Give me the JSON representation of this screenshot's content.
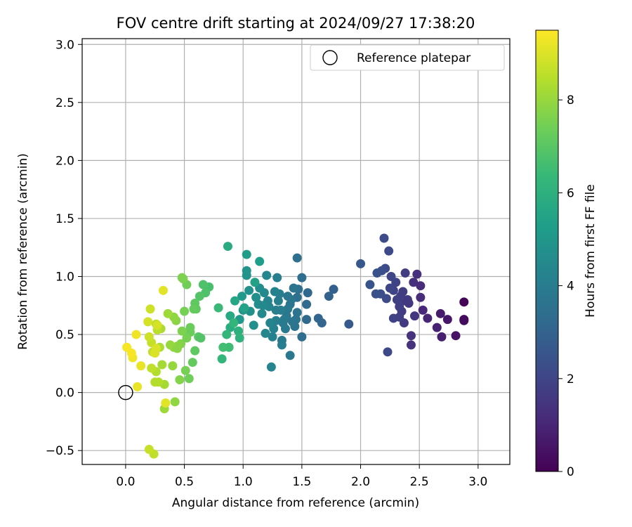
{
  "chart_data": {
    "type": "scatter",
    "title": "FOV centre drift starting at 2024/09/27 17:38:20",
    "xlabel": "Angular distance from reference (arcmin)",
    "ylabel": "Rotation from reference (arcmin)",
    "xlim": [
      -0.37,
      3.27
    ],
    "ylim": [
      -0.62,
      3.05
    ],
    "x_ticks": [
      "0.0",
      "0.5",
      "1.0",
      "1.5",
      "2.0",
      "2.5",
      "3.0"
    ],
    "x_tick_values": [
      0,
      0.5,
      1.0,
      1.5,
      2.0,
      2.5,
      3.0
    ],
    "y_ticks": [
      "−0.5",
      "0.0",
      "0.5",
      "1.0",
      "1.5",
      "2.0",
      "2.5",
      "3.0"
    ],
    "y_tick_values": [
      -0.5,
      0,
      0.5,
      1.0,
      1.5,
      2.0,
      2.5,
      3.0
    ],
    "grid": true,
    "legend": {
      "position": "top-right",
      "label": "Reference platepar"
    },
    "reference_point": {
      "x": 0.0,
      "y": 0.0
    },
    "colorbar": {
      "label": "Hours from first FF file",
      "colormap": "viridis",
      "range": [
        0,
        9.5
      ],
      "ticks": [
        "0",
        "2",
        "4",
        "6",
        "8"
      ],
      "tick_values": [
        0,
        2,
        4,
        6,
        8
      ]
    },
    "colors": {
      "viridis": [
        "#440154",
        "#482878",
        "#3e4989",
        "#31688e",
        "#26828e",
        "#1f9e89",
        "#35b779",
        "#6ece58",
        "#b5de2b",
        "#fde725"
      ]
    },
    "points": [
      [
        2.88,
        0.78,
        0.1
      ],
      [
        2.88,
        0.63,
        0.2
      ],
      [
        2.88,
        0.62,
        0.3
      ],
      [
        2.81,
        0.49,
        0.5
      ],
      [
        2.74,
        0.63,
        0.6
      ],
      [
        2.68,
        0.68,
        0.7
      ],
      [
        2.69,
        0.48,
        0.8
      ],
      [
        2.65,
        0.56,
        0.9
      ],
      [
        2.57,
        0.64,
        1.0
      ],
      [
        2.53,
        0.71,
        1.1
      ],
      [
        2.51,
        0.82,
        1.2
      ],
      [
        2.51,
        0.92,
        1.2
      ],
      [
        2.48,
        1.02,
        1.3
      ],
      [
        2.45,
        0.95,
        1.3
      ],
      [
        2.43,
        0.49,
        1.4
      ],
      [
        2.43,
        0.41,
        1.4
      ],
      [
        2.46,
        0.66,
        1.5
      ],
      [
        2.41,
        0.77,
        1.5
      ],
      [
        2.38,
        0.79,
        1.6
      ],
      [
        2.37,
        0.6,
        1.6
      ],
      [
        2.38,
        1.03,
        1.7
      ],
      [
        2.35,
        0.7,
        1.7
      ],
      [
        2.34,
        0.83,
        1.8
      ],
      [
        2.33,
        0.74,
        1.8
      ],
      [
        2.3,
        0.95,
        1.9
      ],
      [
        2.28,
        0.88,
        1.9
      ],
      [
        2.26,
        1.0,
        2.0
      ],
      [
        2.25,
        0.9,
        2.0
      ],
      [
        2.24,
        1.22,
        2.1
      ],
      [
        2.23,
        0.35,
        2.1
      ],
      [
        2.2,
        1.33,
        2.2
      ],
      [
        2.21,
        1.07,
        2.2
      ],
      [
        2.18,
        1.05,
        2.3
      ],
      [
        2.17,
        0.85,
        2.3
      ],
      [
        2.14,
        1.03,
        2.4
      ],
      [
        2.13,
        0.85,
        2.4
      ],
      [
        2.08,
        0.93,
        2.5
      ],
      [
        2.0,
        1.11,
        2.6
      ],
      [
        1.9,
        0.59,
        2.7
      ],
      [
        2.28,
        0.64,
        1.9
      ],
      [
        2.33,
        0.65,
        1.8
      ],
      [
        2.31,
        0.8,
        1.8
      ],
      [
        2.36,
        0.87,
        1.7
      ],
      [
        2.4,
        0.8,
        1.6
      ],
      [
        2.22,
        0.81,
        2.2
      ],
      [
        1.77,
        0.89,
        2.9
      ],
      [
        1.73,
        0.83,
        3.0
      ],
      [
        1.67,
        0.6,
        3.1
      ],
      [
        1.64,
        0.64,
        3.1
      ],
      [
        1.55,
        0.86,
        3.2
      ],
      [
        1.54,
        0.76,
        3.3
      ],
      [
        1.54,
        0.63,
        3.3
      ],
      [
        1.5,
        0.99,
        3.4
      ],
      [
        1.5,
        0.48,
        3.4
      ],
      [
        1.47,
        0.89,
        3.5
      ],
      [
        1.46,
        1.16,
        3.5
      ],
      [
        1.46,
        0.82,
        3.5
      ],
      [
        1.46,
        0.69,
        3.6
      ],
      [
        1.45,
        0.63,
        3.6
      ],
      [
        1.44,
        0.57,
        3.6
      ],
      [
        1.43,
        0.9,
        3.7
      ],
      [
        1.41,
        0.8,
        3.7
      ],
      [
        1.4,
        0.76,
        3.7
      ],
      [
        1.4,
        0.32,
        3.8
      ],
      [
        1.38,
        0.72,
        3.8
      ],
      [
        1.37,
        0.66,
        3.8
      ],
      [
        1.36,
        0.55,
        3.9
      ],
      [
        1.34,
        0.6,
        3.9
      ],
      [
        1.33,
        0.45,
        3.9
      ],
      [
        1.33,
        0.41,
        4.0
      ],
      [
        1.32,
        0.71,
        4.0
      ],
      [
        1.31,
        0.85,
        4.0
      ],
      [
        1.3,
        0.79,
        4.1
      ],
      [
        1.29,
        0.99,
        4.1
      ],
      [
        1.28,
        0.62,
        4.1
      ],
      [
        1.27,
        0.87,
        4.2
      ],
      [
        1.26,
        0.55,
        4.2
      ],
      [
        1.25,
        0.48,
        4.2
      ],
      [
        1.24,
        0.22,
        4.3
      ],
      [
        1.23,
        0.6,
        4.3
      ],
      [
        1.22,
        0.74,
        4.3
      ],
      [
        1.21,
        0.79,
        4.4
      ],
      [
        1.2,
        1.01,
        4.4
      ],
      [
        1.19,
        0.51,
        4.4
      ],
      [
        1.18,
        0.86,
        4.5
      ],
      [
        1.16,
        0.68,
        4.5
      ],
      [
        1.14,
        0.9,
        4.6
      ],
      [
        1.13,
        0.76,
        4.6
      ],
      [
        1.11,
        0.82,
        4.7
      ],
      [
        1.09,
        0.58,
        4.7
      ],
      [
        1.06,
        0.7,
        4.8
      ],
      [
        1.05,
        0.88,
        4.8
      ],
      [
        1.03,
        1.05,
        4.9
      ],
      [
        1.03,
        1.01,
        4.9
      ],
      [
        1.0,
        0.71,
        5.0
      ],
      [
        0.99,
        0.83,
        5.1
      ],
      [
        0.97,
        0.63,
        5.1
      ],
      [
        1.03,
        1.19,
        5.2
      ],
      [
        1.14,
        1.13,
        5.3
      ],
      [
        1.1,
        0.95,
        5.4
      ],
      [
        1.01,
        0.73,
        5.5
      ],
      [
        0.93,
        0.79,
        5.6
      ],
      [
        0.89,
        0.66,
        5.7
      ],
      [
        0.87,
        1.26,
        5.8
      ],
      [
        0.89,
        0.56,
        5.9
      ],
      [
        0.96,
        0.53,
        6.0
      ],
      [
        0.97,
        0.47,
        6.1
      ],
      [
        0.92,
        0.6,
        6.2
      ],
      [
        0.86,
        0.5,
        6.3
      ],
      [
        0.82,
        0.29,
        6.3
      ],
      [
        0.79,
        0.73,
        6.4
      ],
      [
        0.88,
        0.39,
        6.5
      ],
      [
        0.83,
        0.39,
        6.6
      ],
      [
        0.71,
        0.91,
        6.7
      ],
      [
        0.66,
        0.93,
        6.8
      ],
      [
        0.68,
        0.86,
        6.8
      ],
      [
        0.63,
        0.83,
        6.9
      ],
      [
        0.62,
        0.48,
        7.0
      ],
      [
        0.6,
        0.72,
        7.1
      ],
      [
        0.59,
        0.77,
        7.1
      ],
      [
        0.58,
        0.72,
        7.2
      ],
      [
        0.57,
        0.26,
        7.2
      ],
      [
        0.55,
        0.56,
        7.3
      ],
      [
        0.55,
        0.52,
        7.3
      ],
      [
        0.54,
        0.12,
        7.4
      ],
      [
        0.52,
        0.93,
        7.4
      ],
      [
        0.51,
        0.19,
        7.5
      ],
      [
        0.5,
        0.7,
        7.5
      ],
      [
        0.49,
        0.98,
        7.6
      ],
      [
        0.48,
        0.53,
        7.6
      ],
      [
        0.47,
        0.42,
        7.7
      ],
      [
        0.46,
        0.11,
        7.7
      ],
      [
        0.44,
        0.4,
        7.8
      ],
      [
        0.43,
        0.62,
        7.8
      ],
      [
        0.42,
        -0.08,
        7.9
      ],
      [
        0.41,
        0.65,
        7.9
      ],
      [
        0.41,
        0.39,
        7.9
      ],
      [
        0.4,
        0.23,
        8.0
      ],
      [
        0.38,
        0.41,
        8.0
      ],
      [
        0.36,
        0.68,
        8.1
      ],
      [
        0.33,
        -0.14,
        8.1
      ],
      [
        0.33,
        0.07,
        8.2
      ],
      [
        0.31,
        0.24,
        8.2
      ],
      [
        0.3,
        0.55,
        8.3
      ],
      [
        0.29,
        0.39,
        8.3
      ],
      [
        0.28,
        0.09,
        8.4
      ],
      [
        0.26,
        0.18,
        8.4
      ],
      [
        0.26,
        0.59,
        8.5
      ],
      [
        0.27,
        0.54,
        8.5
      ],
      [
        0.24,
        -0.53,
        8.6
      ],
      [
        0.23,
        0.35,
        8.6
      ],
      [
        0.22,
        0.21,
        8.6
      ],
      [
        0.2,
        -0.49,
        8.7
      ],
      [
        0.22,
        0.43,
        8.7
      ],
      [
        0.21,
        0.72,
        8.8
      ],
      [
        0.2,
        0.48,
        8.8
      ],
      [
        0.19,
        0.61,
        8.9
      ],
      [
        0.27,
        0.58,
        8.9
      ],
      [
        0.26,
        0.38,
        9.0
      ],
      [
        0.25,
        0.34,
        9.0
      ],
      [
        0.32,
        0.88,
        9.1
      ],
      [
        0.34,
        -0.09,
        9.1
      ],
      [
        0.13,
        0.23,
        9.2
      ],
      [
        0.1,
        0.05,
        9.2
      ],
      [
        0.09,
        0.5,
        9.3
      ],
      [
        0.06,
        0.3,
        9.3
      ],
      [
        0.05,
        0.34,
        9.4
      ],
      [
        0.01,
        0.39,
        9.4
      ],
      [
        0.48,
        0.99,
        7.6
      ],
      [
        0.25,
        0.09,
        8.4
      ],
      [
        0.52,
        0.47,
        7.5
      ],
      [
        0.64,
        0.47,
        6.9
      ],
      [
        0.59,
        0.36,
        7.1
      ],
      [
        0.44,
        0.38,
        7.8
      ],
      [
        1.21,
        0.79,
        4.3
      ],
      [
        1.38,
        0.83,
        3.8
      ],
      [
        1.35,
        0.63,
        3.9
      ],
      [
        1.17,
        0.75,
        4.5
      ],
      [
        1.28,
        0.71,
        4.1
      ],
      [
        1.42,
        0.61,
        3.7
      ]
    ]
  }
}
